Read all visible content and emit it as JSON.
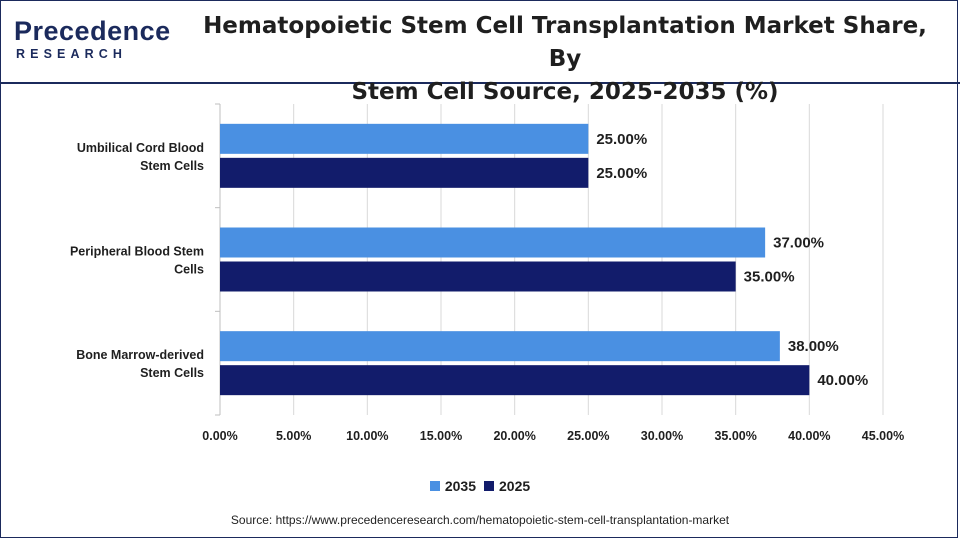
{
  "brand": {
    "name_lead": "P",
    "name_rest": "recedence",
    "sub": "RESEARCH",
    "color": "#1b2a5c"
  },
  "title_line1": "Hematopoietic Stem Cell Transplantation Market Share, By",
  "title_line2": "Stem Cell Source, 2025-2035 (%)",
  "source": "Source: https://www.precedenceresearch.com/hematopoietic-stem-cell-transplantation-market",
  "chart_data": {
    "type": "bar",
    "orientation": "horizontal",
    "categories": [
      [
        "Umbilical Cord Blood",
        "Stem Cells"
      ],
      [
        "Peripheral Blood Stem",
        "Cells"
      ],
      [
        "Bone Marrow-derived",
        "Stem Cells"
      ]
    ],
    "series": [
      {
        "name": "2035",
        "color": "#4a90e2",
        "values": [
          25.0,
          37.0,
          38.0
        ],
        "labels": [
          "25.00%",
          "37.00%",
          "38.00%"
        ]
      },
      {
        "name": "2025",
        "color": "#121c6b",
        "values": [
          25.0,
          35.0,
          40.0
        ],
        "labels": [
          "25.00%",
          "35.00%",
          "40.00%"
        ]
      }
    ],
    "xlim": [
      0,
      45
    ],
    "xticks": [
      "0.00%",
      "5.00%",
      "10.00%",
      "15.00%",
      "20.00%",
      "25.00%",
      "30.00%",
      "35.00%",
      "40.00%",
      "45.00%"
    ],
    "grid": "vertical",
    "legend_position": "bottom"
  }
}
